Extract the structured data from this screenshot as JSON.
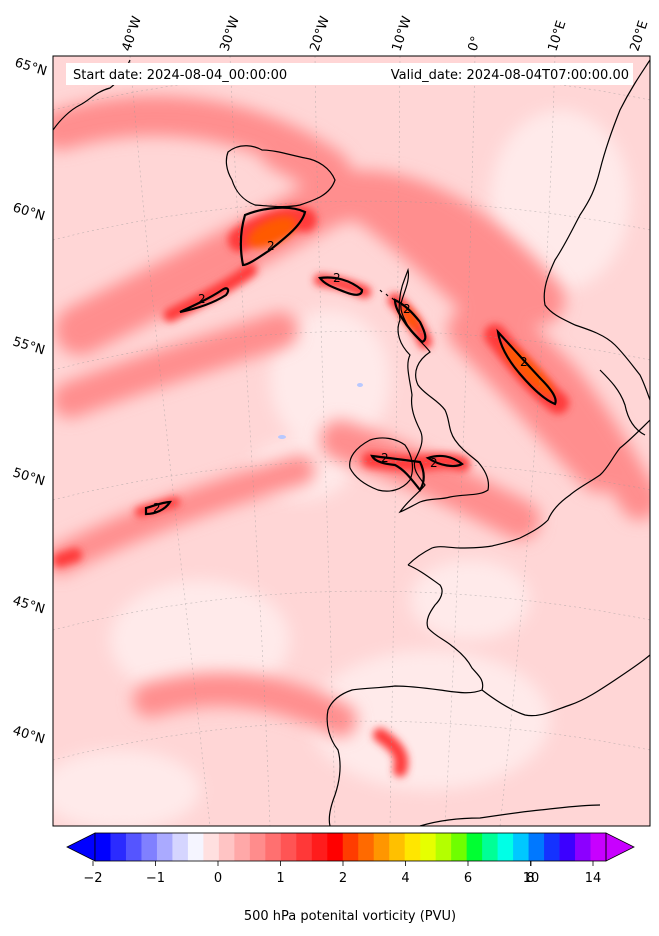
{
  "header": {
    "start_date": "Start date: 2024-08-04_00:00:00",
    "valid_date": "Valid_date: 2024-08-04T07:00:00.00"
  },
  "map": {
    "projection": "lambert-conformal",
    "field_colors": {
      "background": "#ffd6d6",
      "light": "#ffeaea",
      "medium": "#ff8e8e",
      "strong": "#ff3b3b",
      "max": "#ff0000",
      "peak": "#ff5a00",
      "negative": "#b8c8ff"
    },
    "contour_color": "#000000",
    "contour_label": "2",
    "lon_labels": [
      "40°W",
      "30°W",
      "20°W",
      "10°W",
      "0°",
      "10°E",
      "20°E"
    ],
    "lat_labels": [
      "65°N",
      "60°N",
      "55°N",
      "50°N",
      "45°N",
      "40°N"
    ]
  },
  "colorbar": {
    "label": "500 hPa potenital vorticity (PVU)",
    "ticks": [
      "−2",
      "−1",
      "0",
      "1",
      "2",
      "4",
      "6",
      "8",
      "10",
      "14"
    ],
    "colors": [
      "#0000ff",
      "#2b2bff",
      "#5555ff",
      "#8080ff",
      "#aaaaff",
      "#d5d5ff",
      "#f5f5ff",
      "#ffe0e0",
      "#ffc4c4",
      "#ffa8a8",
      "#ff8c8c",
      "#ff7070",
      "#ff5454",
      "#ff3838",
      "#ff1c1c",
      "#ff0000",
      "#ff3c00",
      "#ff6a00",
      "#ff9600",
      "#ffc000",
      "#ffe600",
      "#e6ff00",
      "#b4ff00",
      "#6eff00",
      "#00ff32",
      "#00ff96",
      "#00ffe6",
      "#00c8ff",
      "#0078ff",
      "#1432ff",
      "#3c00ff",
      "#8c00ff",
      "#c800ff"
    ]
  }
}
